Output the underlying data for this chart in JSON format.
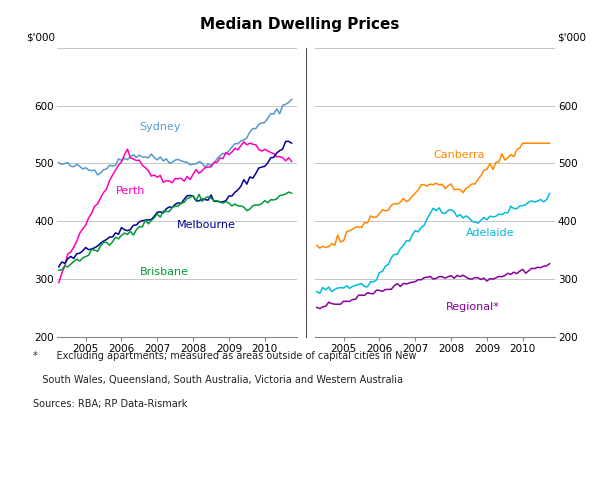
{
  "title": "Median Dwelling Prices",
  "ylabel_left": "$’000",
  "ylabel_right": "$’000",
  "ylim": [
    200,
    700
  ],
  "yticks": [
    200,
    300,
    400,
    500,
    600,
    700
  ],
  "background_color": "#ffffff",
  "grid_color": "#bbbbbb",
  "footnote_line1": "*      Excluding apartments; measured as areas outside of capital cities in New",
  "footnote_line2": "   South Wales, Queensland, South Australia, Victoria and Western Australia",
  "footnote_line3": "Sources: RBA; RP Data-Rismark",
  "left_colors": {
    "Sydney": "#5599cc",
    "Perth": "#ff00bb",
    "Melbourne": "#000099",
    "Brisbane": "#009933"
  },
  "right_colors": {
    "Canberra": "#ff8800",
    "Adelaide": "#00bbdd",
    "Regional*": "#880099"
  }
}
